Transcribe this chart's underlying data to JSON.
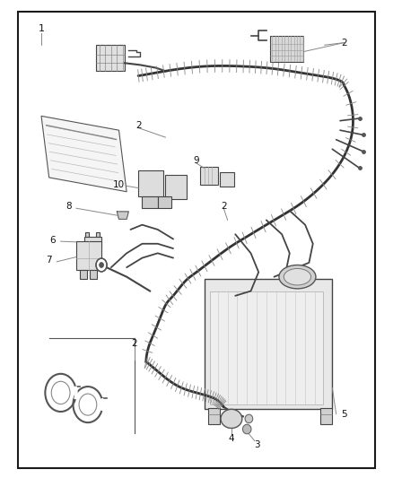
{
  "bg_color": "#ffffff",
  "border_color": "#1a1a1a",
  "wire_color": "#333333",
  "part_color": "#555555",
  "fig_width": 4.38,
  "fig_height": 5.33,
  "harness_main": {
    "x": [
      0.42,
      0.5,
      0.6,
      0.7,
      0.8,
      0.88,
      0.9,
      0.88,
      0.82,
      0.76,
      0.7,
      0.65,
      0.6,
      0.56,
      0.52,
      0.5,
      0.48,
      0.46,
      0.44,
      0.42,
      0.4,
      0.38,
      0.37,
      0.36,
      0.35
    ],
    "y": [
      0.84,
      0.87,
      0.88,
      0.86,
      0.82,
      0.76,
      0.68,
      0.62,
      0.57,
      0.53,
      0.5,
      0.47,
      0.44,
      0.41,
      0.38,
      0.35,
      0.32,
      0.3,
      0.28,
      0.26,
      0.24,
      0.22,
      0.2,
      0.18,
      0.16
    ]
  }
}
